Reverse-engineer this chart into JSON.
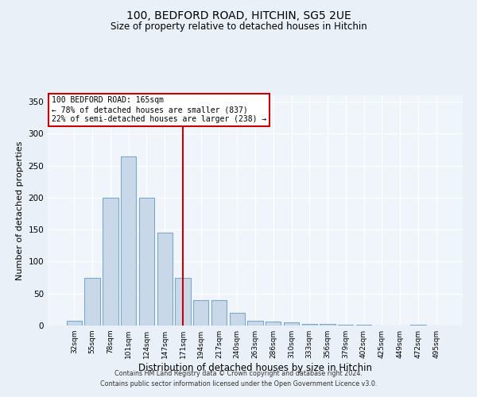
{
  "title": "100, BEDFORD ROAD, HITCHIN, SG5 2UE",
  "subtitle": "Size of property relative to detached houses in Hitchin",
  "xlabel": "Distribution of detached houses by size in Hitchin",
  "ylabel": "Number of detached properties",
  "bar_labels": [
    "32sqm",
    "55sqm",
    "78sqm",
    "101sqm",
    "124sqm",
    "147sqm",
    "171sqm",
    "194sqm",
    "217sqm",
    "240sqm",
    "263sqm",
    "286sqm",
    "310sqm",
    "333sqm",
    "356sqm",
    "379sqm",
    "402sqm",
    "425sqm",
    "449sqm",
    "472sqm",
    "495sqm"
  ],
  "bar_values": [
    7,
    74,
    200,
    265,
    200,
    145,
    74,
    40,
    40,
    20,
    7,
    6,
    5,
    3,
    2,
    1,
    1,
    0,
    0,
    1,
    0
  ],
  "bar_color": "#c8d8e8",
  "bar_edge_color": "#7aaac8",
  "vline_x": 6.0,
  "vline_color": "#cc0000",
  "annotation_title": "100 BEDFORD ROAD: 165sqm",
  "annotation_line1": "← 78% of detached houses are smaller (837)",
  "annotation_line2": "22% of semi-detached houses are larger (238) →",
  "annotation_box_color": "#ffffff",
  "annotation_box_edge_color": "#cc0000",
  "ylim": [
    0,
    360
  ],
  "yticks": [
    0,
    50,
    100,
    150,
    200,
    250,
    300,
    350
  ],
  "footer_line1": "Contains HM Land Registry data © Crown copyright and database right 2024.",
  "footer_line2": "Contains public sector information licensed under the Open Government Licence v3.0.",
  "bg_color": "#eaf0f8",
  "plot_bg_color": "#f0f5fb"
}
